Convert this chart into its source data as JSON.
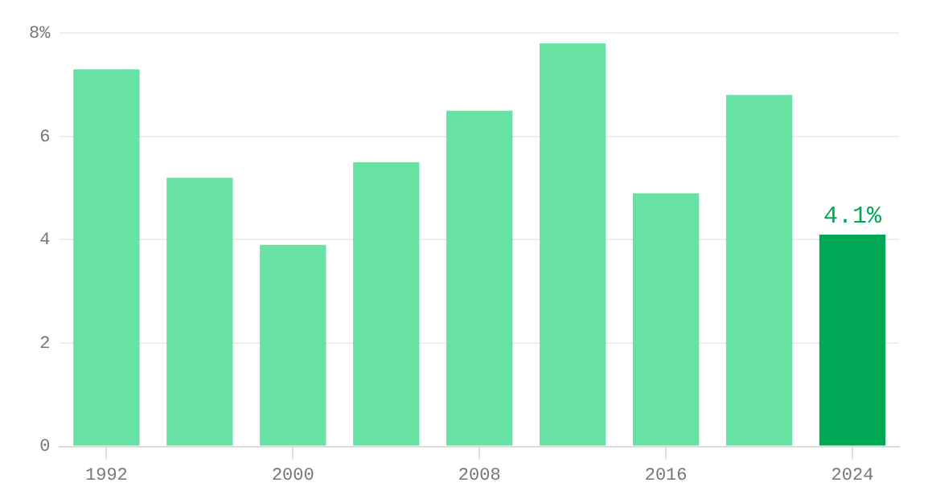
{
  "chart_data": {
    "type": "bar",
    "categories": [
      "1992",
      null,
      "2000",
      null,
      "2008",
      null,
      "2016",
      null,
      "2024"
    ],
    "values": [
      7.3,
      5.2,
      3.9,
      5.5,
      6.5,
      7.8,
      4.9,
      6.8,
      4.1
    ],
    "colors": [
      "#68e2a4",
      "#68e2a4",
      "#68e2a4",
      "#68e2a4",
      "#68e2a4",
      "#68e2a4",
      "#68e2a4",
      "#68e2a4",
      "#00a855"
    ],
    "value_labels": [
      null,
      null,
      null,
      null,
      null,
      null,
      null,
      null,
      "4.1%"
    ],
    "ylim": [
      0,
      8
    ],
    "yticks": [
      0,
      2,
      4,
      6,
      {
        "value": 8,
        "label": "8%"
      }
    ],
    "grid": "y"
  }
}
